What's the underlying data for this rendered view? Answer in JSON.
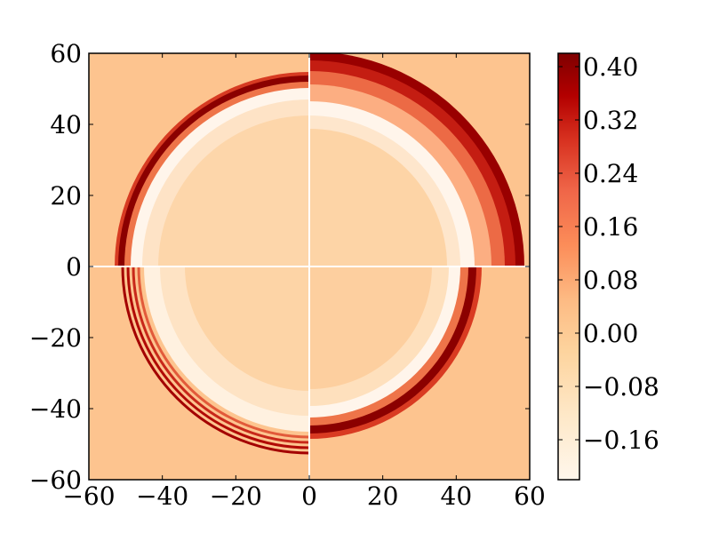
{
  "chart_data": {
    "type": "heatmap",
    "title": "",
    "xlabel": "",
    "ylabel": "",
    "xlim": [
      -60,
      60
    ],
    "ylim": [
      -60,
      60
    ],
    "x_ticks": [
      -60,
      -40,
      -20,
      0,
      20,
      40,
      60
    ],
    "y_ticks": [
      -60,
      -40,
      -20,
      0,
      20,
      40,
      60
    ],
    "x_tick_labels": [
      "−60",
      "−40",
      "−20",
      "0",
      "20",
      "40",
      "60"
    ],
    "y_tick_labels": [
      "−60",
      "−40",
      "−20",
      "0",
      "20",
      "40",
      "60"
    ],
    "colormap": "OrRd",
    "background_value": 0.0,
    "divider_lines": [
      0,
      0
    ],
    "colorbar": {
      "vmin": -0.22,
      "vmax": 0.42,
      "ticks": [
        0.4,
        0.32,
        0.24,
        0.16,
        0.08,
        0.0,
        -0.08,
        -0.16
      ],
      "tick_labels": [
        "0.40",
        "0.32",
        "0.24",
        "0.16",
        "0.08",
        "0.00",
        "−0.08",
        "−0.16"
      ]
    },
    "quadrants": [
      {
        "name": "upper-left",
        "ring_radius": 53,
        "peak_value": 0.42,
        "trough_radius": 48,
        "trough_value": -0.2,
        "outside": "background"
      },
      {
        "name": "upper-right",
        "ring_radius": 60,
        "peak_value": 0.42,
        "trough_radius": 42,
        "trough_value": -0.22,
        "outside": "blank"
      },
      {
        "name": "lower-left",
        "ring_radius": 52,
        "peak_value": 0.4,
        "trough_radius": 40,
        "trough_value": -0.1,
        "ripples": 4,
        "outside": "background"
      },
      {
        "name": "lower-right",
        "ring_radius": 46,
        "peak_value": 0.42,
        "trough_radius": 41,
        "trough_value": -0.2,
        "outside": "background"
      }
    ],
    "colors": {
      "background": "#fdc48f",
      "divider": "#ffffff",
      "frame": "#000000"
    }
  }
}
